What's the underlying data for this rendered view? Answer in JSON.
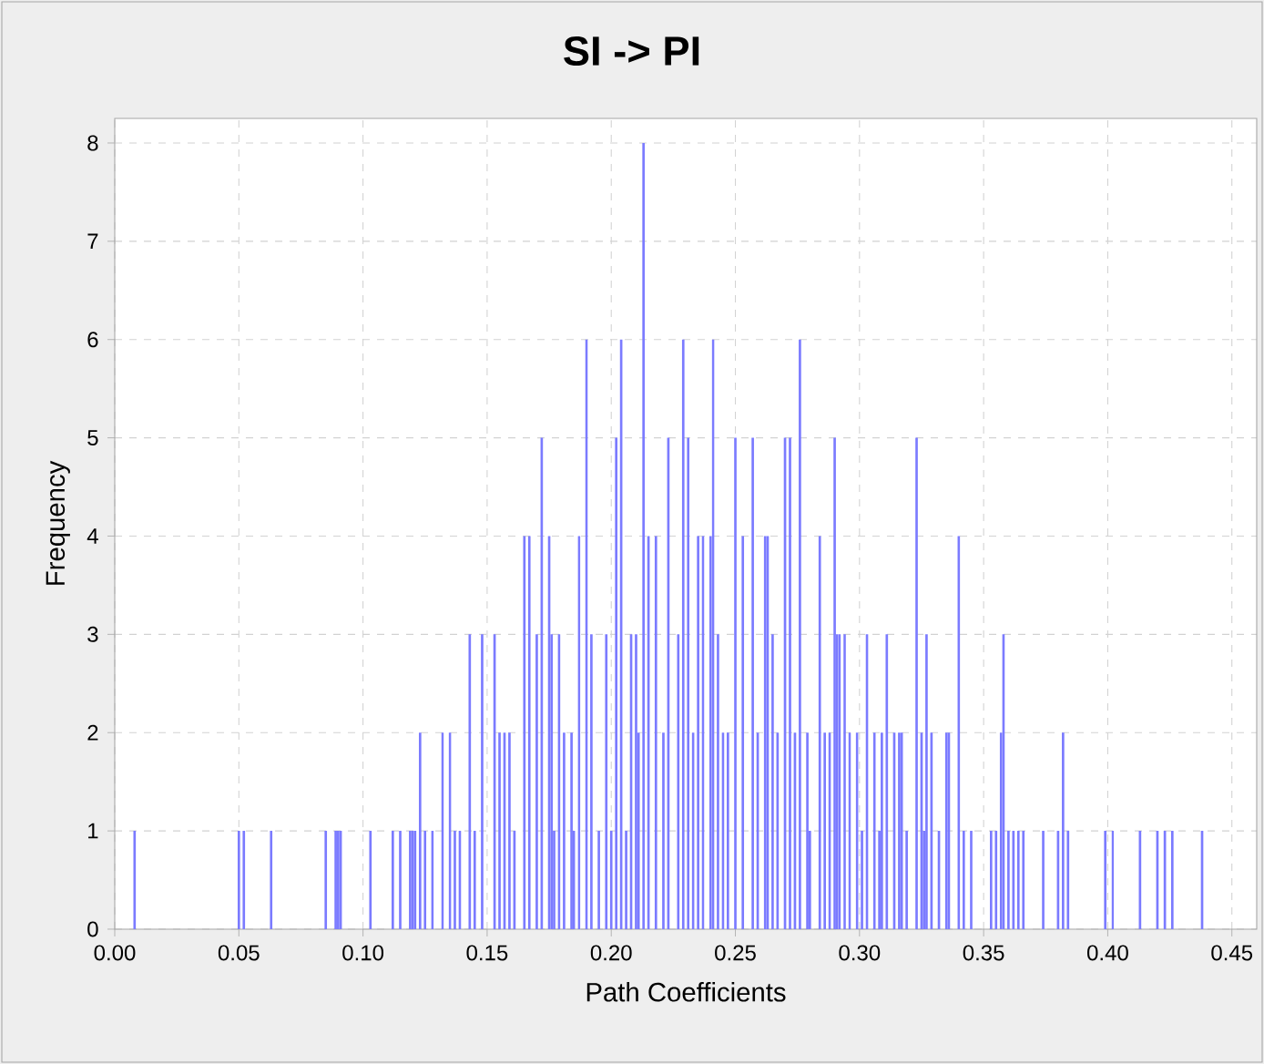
{
  "chart_data": {
    "type": "bar",
    "title": "SI -> PI",
    "xlabel": "Path Coefficients",
    "ylabel": "Frequency",
    "color": "#7b7bff",
    "x": [
      0.008,
      0.05,
      0.052,
      0.063,
      0.085,
      0.089,
      0.09,
      0.091,
      0.103,
      0.112,
      0.115,
      0.119,
      0.12,
      0.121,
      0.123,
      0.125,
      0.128,
      0.132,
      0.135,
      0.137,
      0.139,
      0.143,
      0.145,
      0.148,
      0.153,
      0.155,
      0.157,
      0.159,
      0.161,
      0.165,
      0.167,
      0.17,
      0.172,
      0.175,
      0.176,
      0.177,
      0.179,
      0.181,
      0.184,
      0.185,
      0.187,
      0.19,
      0.192,
      0.195,
      0.198,
      0.2,
      0.202,
      0.204,
      0.206,
      0.208,
      0.21,
      0.211,
      0.213,
      0.215,
      0.218,
      0.221,
      0.223,
      0.227,
      0.229,
      0.231,
      0.233,
      0.235,
      0.237,
      0.24,
      0.241,
      0.243,
      0.245,
      0.247,
      0.25,
      0.253,
      0.257,
      0.259,
      0.262,
      0.263,
      0.265,
      0.267,
      0.27,
      0.272,
      0.274,
      0.276,
      0.279,
      0.28,
      0.284,
      0.286,
      0.288,
      0.29,
      0.291,
      0.292,
      0.294,
      0.296,
      0.299,
      0.301,
      0.303,
      0.306,
      0.308,
      0.309,
      0.311,
      0.314,
      0.316,
      0.317,
      0.319,
      0.323,
      0.325,
      0.326,
      0.327,
      0.329,
      0.332,
      0.335,
      0.336,
      0.34,
      0.342,
      0.345,
      0.353,
      0.355,
      0.357,
      0.358,
      0.36,
      0.362,
      0.364,
      0.366,
      0.374,
      0.38,
      0.382,
      0.384,
      0.399,
      0.402,
      0.413,
      0.42,
      0.423,
      0.426,
      0.438
    ],
    "values": [
      1,
      1,
      1,
      1,
      1,
      1,
      1,
      1,
      1,
      1,
      1,
      1,
      1,
      1,
      2,
      1,
      1,
      2,
      2,
      1,
      1,
      3,
      1,
      3,
      3,
      2,
      2,
      2,
      1,
      4,
      4,
      3,
      5,
      4,
      3,
      1,
      3,
      2,
      2,
      1,
      4,
      6,
      3,
      1,
      3,
      1,
      5,
      6,
      1,
      3,
      3,
      2,
      8,
      4,
      4,
      2,
      5,
      3,
      6,
      5,
      2,
      4,
      4,
      4,
      6,
      3,
      2,
      2,
      5,
      4,
      5,
      2,
      4,
      4,
      3,
      2,
      5,
      5,
      2,
      6,
      2,
      1,
      4,
      2,
      2,
      5,
      3,
      3,
      3,
      2,
      2,
      1,
      3,
      2,
      1,
      2,
      3,
      2,
      2,
      2,
      1,
      5,
      2,
      1,
      3,
      2,
      1,
      2,
      2,
      4,
      1,
      1,
      1,
      1,
      2,
      3,
      1,
      1,
      1,
      1,
      1,
      1,
      2,
      1,
      1,
      1,
      1,
      1,
      1,
      1,
      1
    ],
    "xlim": [
      0,
      0.46
    ],
    "ylim": [
      0,
      8.25
    ],
    "xticks": [
      {
        "value": 0,
        "label": "0.00"
      },
      {
        "value": 0.05,
        "label": "0.05"
      },
      {
        "value": 0.1,
        "label": "0.10"
      },
      {
        "value": 0.15,
        "label": "0.15"
      },
      {
        "value": 0.2,
        "label": "0.20"
      },
      {
        "value": 0.25,
        "label": "0.25"
      },
      {
        "value": 0.3,
        "label": "0.30"
      },
      {
        "value": 0.35,
        "label": "0.35"
      },
      {
        "value": 0.4,
        "label": "0.40"
      },
      {
        "value": 0.45,
        "label": "0.45"
      }
    ],
    "yticks": [
      0,
      1,
      2,
      3,
      4,
      5,
      6,
      7,
      8
    ],
    "grid": true
  }
}
